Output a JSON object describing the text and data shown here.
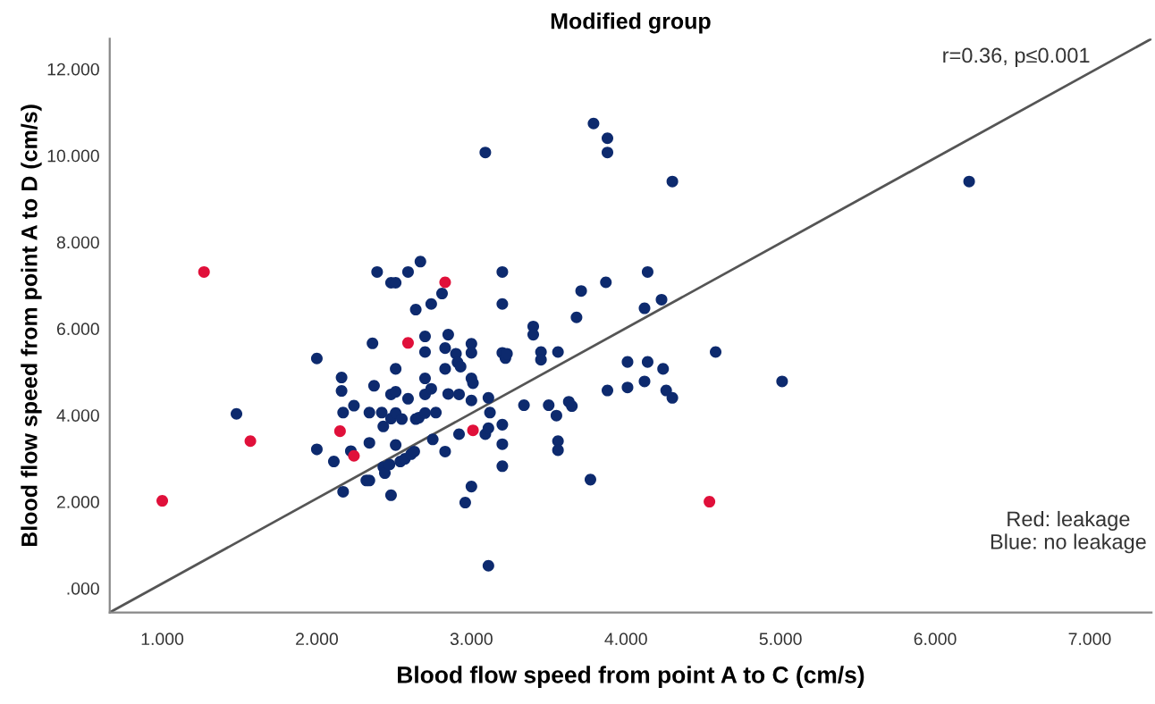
{
  "chart_data": {
    "type": "scatter",
    "title": "Modified group",
    "xlabel": "Blood flow speed from point A to C (cm/s)",
    "ylabel": "Blood flow speed from point A to D (cm/s)",
    "annotations": [
      "r=0.36, p≤0.001",
      "Red: leakage\nBlue: no leakage"
    ],
    "xlim": [
      0.66,
      7.4
    ],
    "ylim": [
      -0.56,
      12.7
    ],
    "xticks": [
      {
        "value": 1,
        "label": "1.000"
      },
      {
        "value": 2,
        "label": "2.000"
      },
      {
        "value": 3,
        "label": "3.000"
      },
      {
        "value": 4,
        "label": "4.000"
      },
      {
        "value": 5,
        "label": "5.000"
      },
      {
        "value": 6,
        "label": "6.000"
      },
      {
        "value": 7,
        "label": "7.000"
      }
    ],
    "yticks": [
      {
        "value": 0,
        "label": ".000"
      },
      {
        "value": 2,
        "label": "2.000"
      },
      {
        "value": 4,
        "label": "4.000"
      },
      {
        "value": 6,
        "label": "6.000"
      },
      {
        "value": 8,
        "label": "8.000"
      },
      {
        "value": 10,
        "label": "10.000"
      },
      {
        "value": 12,
        "label": "12.000"
      }
    ],
    "grid": false,
    "legend": false,
    "marker": "circle",
    "series": [
      {
        "color": "#0d2a6e",
        "x": [
          1.48,
          2.0,
          2.0,
          2.11,
          2.16,
          2.16,
          2.17,
          2.17,
          2.22,
          2.24,
          2.32,
          2.34,
          2.34,
          2.34,
          2.36,
          2.37,
          2.39,
          2.42,
          2.43,
          2.43,
          2.44,
          2.47,
          2.48,
          2.51,
          2.48,
          2.51,
          2.48,
          2.51,
          2.55,
          2.48,
          2.51,
          2.51,
          2.54,
          2.57,
          2.61,
          2.63,
          2.59,
          2.59,
          2.64,
          2.64,
          2.66,
          2.7,
          2.67,
          2.7,
          2.7,
          2.7,
          2.7,
          2.74,
          2.74,
          2.75,
          2.77,
          2.81,
          2.83,
          2.85,
          2.83,
          2.85,
          2.83,
          2.9,
          2.91,
          2.93,
          2.92,
          2.92,
          2.96,
          3.0,
          3.0,
          3.0,
          3.01,
          3.0,
          3.0,
          3.09,
          3.09,
          3.11,
          3.11,
          3.12,
          3.11,
          3.2,
          3.2,
          3.2,
          3.22,
          3.23,
          3.2,
          3.2,
          3.2,
          3.34,
          3.4,
          3.4,
          3.45,
          3.45,
          3.5,
          3.55,
          3.56,
          3.56,
          3.56,
          3.63,
          3.65,
          3.68,
          3.71,
          3.77,
          3.79,
          3.88,
          3.88,
          4.3,
          6.22,
          4.14,
          3.87,
          4.12,
          4.23,
          4.58,
          4.01,
          4.14,
          4.24,
          4.12,
          4.01,
          3.88,
          5.01,
          4.26,
          4.3
        ],
        "values": [
          4.03,
          5.31,
          3.21,
          2.93,
          4.87,
          4.56,
          4.06,
          2.23,
          3.17,
          4.22,
          2.49,
          2.49,
          4.06,
          3.36,
          5.66,
          4.68,
          7.31,
          4.06,
          3.74,
          2.8,
          2.66,
          2.86,
          7.06,
          7.06,
          4.48,
          4.54,
          3.92,
          4.05,
          3.91,
          2.15,
          5.07,
          3.31,
          2.93,
          2.99,
          3.1,
          3.16,
          4.38,
          7.31,
          6.44,
          3.91,
          3.94,
          4.05,
          7.55,
          5.82,
          5.46,
          4.85,
          4.48,
          6.57,
          4.61,
          3.44,
          4.06,
          6.81,
          5.55,
          5.86,
          5.07,
          4.49,
          3.16,
          5.42,
          5.22,
          5.12,
          4.48,
          3.56,
          1.98,
          5.65,
          5.44,
          4.85,
          4.74,
          4.34,
          2.35,
          10.07,
          3.56,
          3.7,
          4.4,
          4.06,
          0.52,
          7.31,
          6.57,
          5.44,
          5.32,
          5.42,
          3.78,
          3.33,
          2.82,
          4.23,
          6.05,
          5.86,
          5.46,
          5.28,
          4.23,
          3.99,
          5.46,
          3.4,
          3.19,
          4.31,
          4.21,
          6.26,
          6.87,
          2.51,
          10.74,
          10.4,
          10.07,
          9.4,
          9.4,
          7.31,
          7.07,
          6.47,
          6.67,
          5.46,
          5.23,
          5.23,
          5.07,
          4.78,
          4.64,
          4.57,
          4.78,
          4.57,
          4.4
        ]
      },
      {
        "color": "#e0103a",
        "x": [
          1.0,
          1.27,
          1.57,
          2.15,
          2.24,
          2.59,
          2.83,
          3.01,
          4.54
        ],
        "values": [
          2.02,
          7.31,
          3.4,
          3.63,
          3.06,
          5.67,
          7.07,
          3.65,
          2.0
        ]
      },
      {
        "type": "line",
        "color": "#555555",
        "marker": "none",
        "line_style": "solid",
        "x": [
          0.66,
          7.4
        ],
        "values": [
          -0.56,
          12.7
        ]
      }
    ]
  }
}
